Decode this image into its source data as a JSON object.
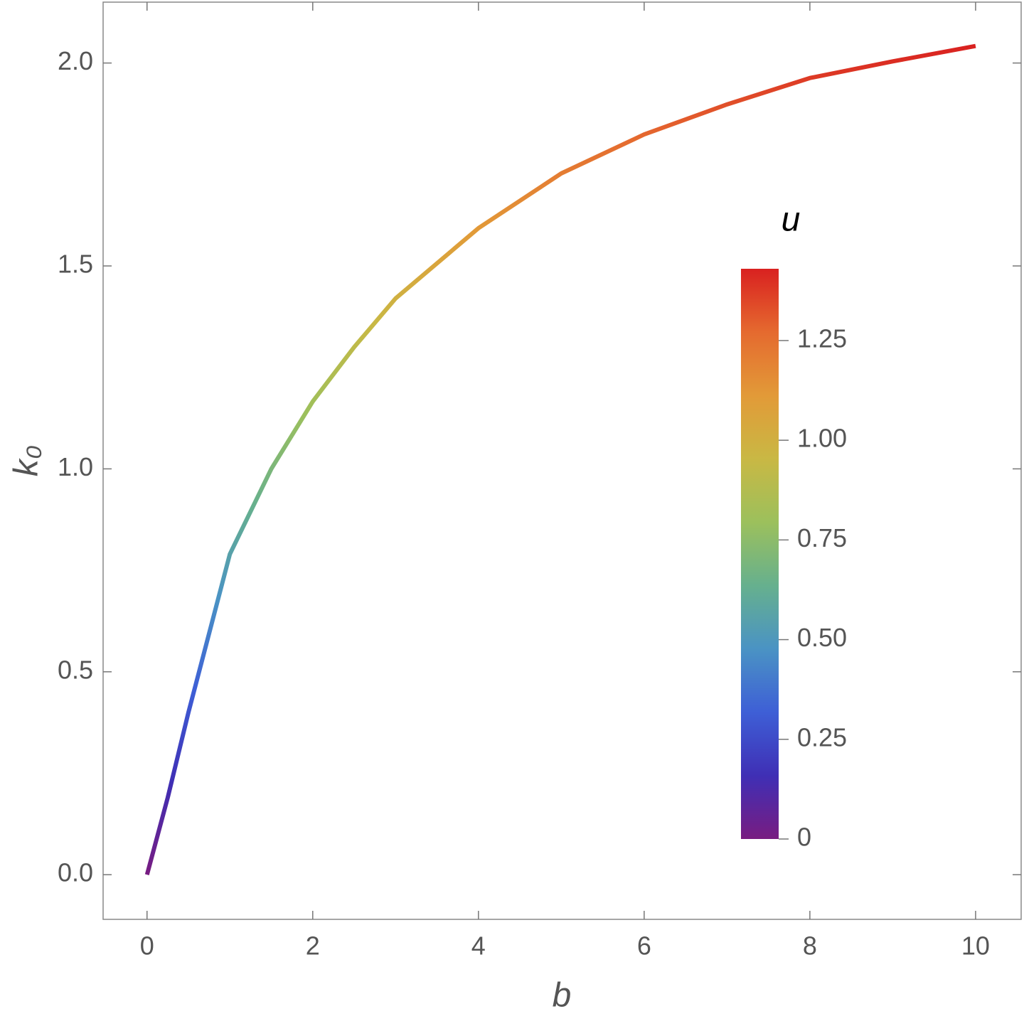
{
  "chart_data": {
    "type": "line",
    "xlabel": "b",
    "ylabel": "k₀",
    "x": [
      0,
      0.25,
      0.5,
      1,
      1.5,
      2,
      2.5,
      3,
      4,
      5,
      6,
      7,
      8,
      9,
      10
    ],
    "series": [
      {
        "values": [
          0,
          0.19,
          0.4,
          0.79,
          1.0,
          1.166,
          1.3,
          1.42,
          1.593,
          1.728,
          1.824,
          1.898,
          1.963,
          2.004,
          2.042
        ]
      }
    ],
    "xlim": [
      -0.53,
      10.55
    ],
    "ylim": [
      -0.11,
      2.15
    ],
    "xticks": [
      0,
      2,
      4,
      6,
      8,
      10
    ],
    "yticks": [
      {
        "value": 0,
        "label": "0.0"
      },
      0.5,
      {
        "value": 1,
        "label": "1.0"
      },
      1.5,
      {
        "value": 2,
        "label": "2.0"
      }
    ],
    "colorbar": {
      "title": "u",
      "lim": [
        0,
        1.43
      ],
      "ticks": [
        0,
        0.25,
        {
          "value": 0.5,
          "label": "0.50"
        },
        0.75,
        {
          "value": 1,
          "label": "1.00"
        },
        1.25
      ],
      "colormap": [
        "#781c81",
        "#3f2fb5",
        "#3e5fd6",
        "#4a93c4",
        "#66b08e",
        "#9cc05c",
        "#c9b844",
        "#e29a38",
        "#e56a2f",
        "#d92120"
      ]
    }
  }
}
